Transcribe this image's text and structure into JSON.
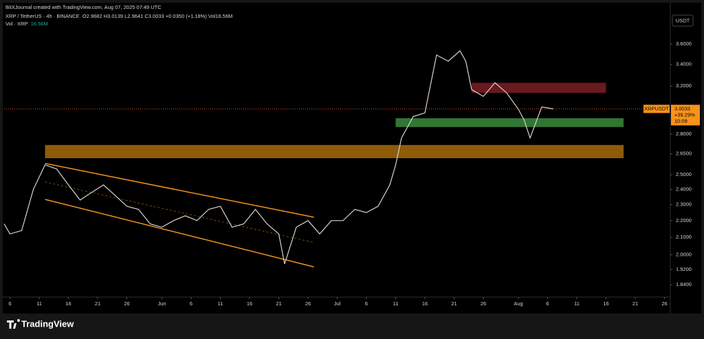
{
  "header": {
    "credit": "BitXJournal created with TradingView.com, Aug 07, 2025 07:49 UTC",
    "symbol": "XRP / TetherUS · 4h · BINANCE",
    "ohlc": "O2.9682 H3.0139 L2.9641 C3.0033 +0.0350 (+1.18%) Vol16.56M",
    "volume_label": "Vol · XRP",
    "volume_value": "16.56M",
    "currency": "USDT"
  },
  "footer": {
    "brand": "TradingView"
  },
  "chart_data": {
    "type": "line",
    "color": "#d8d4cc",
    "log_scale": true,
    "x": [
      "2025-05-05",
      "2025-05-06",
      "2025-05-08",
      "2025-05-10",
      "2025-05-12",
      "2025-05-14",
      "2025-05-16",
      "2025-05-18",
      "2025-05-20",
      "2025-05-22",
      "2025-05-24",
      "2025-05-26",
      "2025-05-28",
      "2025-05-30",
      "2025-06-01",
      "2025-06-03",
      "2025-06-05",
      "2025-06-07",
      "2025-06-09",
      "2025-06-11",
      "2025-06-13",
      "2025-06-15",
      "2025-06-17",
      "2025-06-19",
      "2025-06-21",
      "2025-06-22",
      "2025-06-24",
      "2025-06-26",
      "2025-06-28",
      "2025-06-30",
      "2025-07-02",
      "2025-07-04",
      "2025-07-06",
      "2025-07-08",
      "2025-07-10",
      "2025-07-11",
      "2025-07-12",
      "2025-07-14",
      "2025-07-16",
      "2025-07-18",
      "2025-07-20",
      "2025-07-22",
      "2025-07-23",
      "2025-07-24",
      "2025-07-26",
      "2025-07-28",
      "2025-07-30",
      "2025-08-01",
      "2025-08-02",
      "2025-08-03",
      "2025-08-05",
      "2025-08-07"
    ],
    "values": [
      2.18,
      2.12,
      2.14,
      2.4,
      2.57,
      2.54,
      2.43,
      2.33,
      2.38,
      2.43,
      2.36,
      2.29,
      2.27,
      2.18,
      2.16,
      2.2,
      2.23,
      2.2,
      2.27,
      2.29,
      2.16,
      2.18,
      2.27,
      2.18,
      2.12,
      1.95,
      2.16,
      2.2,
      2.12,
      2.2,
      2.2,
      2.27,
      2.25,
      2.29,
      2.43,
      2.57,
      2.77,
      2.94,
      2.97,
      3.49,
      3.43,
      3.53,
      3.43,
      3.17,
      3.11,
      3.23,
      3.14,
      3.0,
      2.91,
      2.77,
      3.02,
      3.0033
    ],
    "last_price": 3.0033,
    "last_price_symbol": "XRPUSDT",
    "last_price_change": "+39.29%",
    "last_price_timer": "10:09",
    "last_price_color": "#f7931a",
    "zones": [
      {
        "from": "2025-07-24",
        "to": "2025-08-16",
        "low": 3.14,
        "high": 3.23,
        "color": "#7a1f24"
      },
      {
        "from": "2025-07-11",
        "to": "2025-08-19",
        "low": 2.855,
        "high": 2.926,
        "color": "#3c8a3c"
      },
      {
        "from": "2025-05-12",
        "to": "2025-08-19",
        "low": 2.618,
        "high": 2.716,
        "color": "#a86b0a"
      }
    ],
    "channel": {
      "color": "#f7931a",
      "from": "2025-05-12",
      "to": "2025-06-27",
      "upper": [
        2.58,
        2.221
      ],
      "lower": [
        2.334,
        1.934
      ],
      "middle": [
        2.45,
        2.07
      ]
    },
    "xlim": [
      "2025-05-05",
      "2025-08-27"
    ],
    "ylim": [
      1.778,
      3.93
    ],
    "xticks": [
      {
        "value": "2025-05-06",
        "label": "6"
      },
      {
        "value": "2025-05-11",
        "label": "11"
      },
      {
        "value": "2025-05-16",
        "label": "16"
      },
      {
        "value": "2025-05-21",
        "label": "21"
      },
      {
        "value": "2025-05-26",
        "label": "26"
      },
      {
        "value": "2025-06-01",
        "label": "Jun"
      },
      {
        "value": "2025-06-06",
        "label": "6"
      },
      {
        "value": "2025-06-11",
        "label": "11"
      },
      {
        "value": "2025-06-16",
        "label": "16"
      },
      {
        "value": "2025-06-21",
        "label": "21"
      },
      {
        "value": "2025-06-26",
        "label": "26"
      },
      {
        "value": "2025-07-01",
        "label": "Jul"
      },
      {
        "value": "2025-07-06",
        "label": "6"
      },
      {
        "value": "2025-07-11",
        "label": "11"
      },
      {
        "value": "2025-07-16",
        "label": "16"
      },
      {
        "value": "2025-07-21",
        "label": "21"
      },
      {
        "value": "2025-07-26",
        "label": "26"
      },
      {
        "value": "2025-08-01",
        "label": "Aug"
      },
      {
        "value": "2025-08-06",
        "label": "6"
      },
      {
        "value": "2025-08-11",
        "label": "11"
      },
      {
        "value": "2025-08-16",
        "label": "16"
      },
      {
        "value": "2025-08-21",
        "label": "21"
      },
      {
        "value": "2025-08-26",
        "label": "26"
      }
    ],
    "yticks": [
      {
        "value": 3.6,
        "label": "3.6000"
      },
      {
        "value": 3.4,
        "label": "3.4000"
      },
      {
        "value": 3.2,
        "label": "3.2000"
      },
      {
        "value": 2.8,
        "label": "2.8000"
      },
      {
        "value": 2.65,
        "label": "2.6500"
      },
      {
        "value": 2.5,
        "label": "2.5000"
      },
      {
        "value": 2.4,
        "label": "2.4000"
      },
      {
        "value": 2.3,
        "label": "2.3000"
      },
      {
        "value": 2.2,
        "label": "2.2000"
      },
      {
        "value": 2.1,
        "label": "2.1000"
      },
      {
        "value": 2.0,
        "label": "2.0000"
      },
      {
        "value": 1.92,
        "label": "1.9200"
      },
      {
        "value": 1.84,
        "label": "1.8400"
      }
    ]
  }
}
